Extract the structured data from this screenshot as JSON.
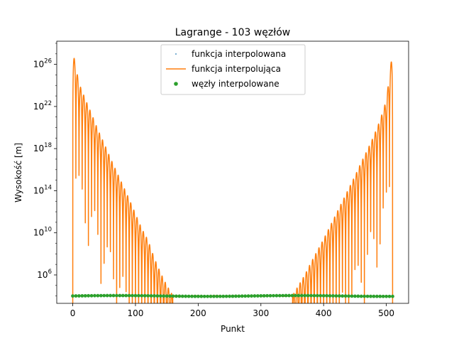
{
  "chart_data": {
    "type": "line",
    "title": "Lagrange - 103 węzłów",
    "xlabel": "Punkt",
    "ylabel": "Wysokość [m]",
    "yscale": "log",
    "xlim": [
      -25.5,
      535.5
    ],
    "ylim_log10": [
      3.3,
      28.2
    ],
    "x_ticks": [
      0,
      100,
      200,
      300,
      400,
      500
    ],
    "y_ticks": [
      {
        "base": "10",
        "exp": "6",
        "log10": 6
      },
      {
        "base": "10",
        "exp": "10",
        "log10": 10
      },
      {
        "base": "10",
        "exp": "14",
        "log10": 14
      },
      {
        "base": "10",
        "exp": "18",
        "log10": 18
      },
      {
        "base": "10",
        "exp": "22",
        "log10": 22
      },
      {
        "base": "10",
        "exp": "26",
        "log10": 26
      }
    ],
    "legend_position": "upper-center",
    "grid": false,
    "colors": {
      "function": "#1f77b4",
      "interpolant": "#ff7f0e",
      "nodes": "#2ca02c"
    },
    "node_count": 103,
    "x_max": 510,
    "baseline_log10": 4.0,
    "series": [
      {
        "name": "funkcja interpolowana",
        "style": "points"
      },
      {
        "name": "funkcja interpolująca",
        "style": "line",
        "oscillation_peaks_log10": [
          {
            "x": 0,
            "log10": 27.3
          },
          {
            "x": 10,
            "log10": 24.2
          },
          {
            "x": 20,
            "log10": 22.7
          },
          {
            "x": 30,
            "log10": 21.3
          },
          {
            "x": 40,
            "log10": 19.8
          },
          {
            "x": 50,
            "log10": 18.5
          },
          {
            "x": 60,
            "log10": 17.1
          },
          {
            "x": 70,
            "log10": 15.8
          },
          {
            "x": 80,
            "log10": 14.5
          },
          {
            "x": 90,
            "log10": 13.2
          },
          {
            "x": 100,
            "log10": 11.8
          },
          {
            "x": 110,
            "log10": 10.4
          },
          {
            "x": 120,
            "log10": 9.3
          },
          {
            "x": 130,
            "log10": 7.6
          },
          {
            "x": 140,
            "log10": 6.2
          },
          {
            "x": 150,
            "log10": 5.0
          },
          {
            "x": 160,
            "log10": 4.0
          },
          {
            "x": 350,
            "log10": 4.0
          },
          {
            "x": 360,
            "log10": 5.0
          },
          {
            "x": 370,
            "log10": 6.0
          },
          {
            "x": 380,
            "log10": 7.2
          },
          {
            "x": 390,
            "log10": 8.3
          },
          {
            "x": 400,
            "log10": 9.4
          },
          {
            "x": 410,
            "log10": 10.6
          },
          {
            "x": 420,
            "log10": 11.8
          },
          {
            "x": 430,
            "log10": 13.0
          },
          {
            "x": 440,
            "log10": 14.2
          },
          {
            "x": 450,
            "log10": 15.4
          },
          {
            "x": 460,
            "log10": 16.7
          },
          {
            "x": 470,
            "log10": 17.9
          },
          {
            "x": 480,
            "log10": 19.2
          },
          {
            "x": 490,
            "log10": 20.7
          },
          {
            "x": 500,
            "log10": 22.6
          },
          {
            "x": 510,
            "log10": 27.3
          }
        ]
      },
      {
        "name": "węzły interpolowane",
        "style": "markers"
      }
    ]
  }
}
